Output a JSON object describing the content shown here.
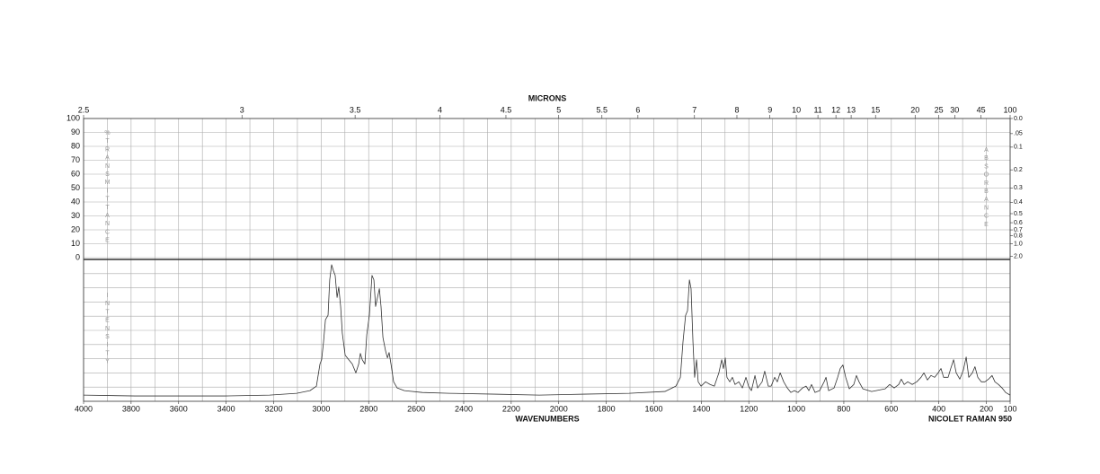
{
  "chart_data": {
    "type": "line",
    "x2label": "MICRONS",
    "xlabel": "WAVENUMBERS",
    "ylabel": "%TRANSMITTANCE",
    "y2label": "ABSORBANCE",
    "intensity_label": "INTENSITY",
    "instrument": "NICOLET RAMAN 950",
    "xlim": [
      4000,
      100
    ],
    "xticks": [
      4000,
      3800,
      3600,
      3400,
      3200,
      3000,
      2800,
      2600,
      2400,
      2200,
      2000,
      1800,
      1600,
      1400,
      1200,
      1000,
      800,
      600,
      400,
      200,
      100
    ],
    "xgrid": [
      4000,
      3900,
      3800,
      3700,
      3600,
      3500,
      3400,
      3300,
      3200,
      3100,
      3000,
      2900,
      2800,
      2700,
      2600,
      2500,
      2400,
      2300,
      2200,
      2100,
      2000,
      1900,
      1800,
      1700,
      1600,
      1500,
      1400,
      1300,
      1200,
      1100,
      1000,
      900,
      800,
      700,
      600,
      500,
      400,
      300,
      200,
      100
    ],
    "x2ticks": [
      2.5,
      3,
      3.5,
      4,
      4.5,
      5,
      5.5,
      6,
      7,
      8,
      9,
      10,
      11,
      12,
      13,
      15,
      20,
      25,
      30,
      45,
      100
    ],
    "ylim": [
      0,
      100
    ],
    "yticks": [
      0,
      10,
      20,
      30,
      40,
      50,
      60,
      70,
      80,
      90,
      100
    ],
    "y2ticks": [
      {
        "value": 0,
        "label": "0.0"
      },
      {
        "value": 0.05,
        "label": ".05"
      },
      0.1,
      0.2,
      0.3,
      0.4,
      0.5,
      0.6,
      0.7,
      0.8,
      {
        "value": 1,
        "label": "1.0"
      },
      {
        "value": 2,
        "label": "2.0"
      }
    ],
    "intensity_lim": [
      0,
      100
    ],
    "grid": true,
    "series": [
      {
        "color": "#333333",
        "x": [
          4000,
          3784,
          3406,
          3217,
          3103,
          3047,
          3020,
          3005,
          2998,
          2990,
          2982,
          2971,
          2964,
          2956,
          2948,
          2941,
          2933,
          2926,
          2918,
          2911,
          2899,
          2884,
          2869,
          2854,
          2842,
          2835,
          2827,
          2816,
          2808,
          2797,
          2786,
          2778,
          2771,
          2763,
          2755,
          2748,
          2740,
          2729,
          2721,
          2714,
          2706,
          2695,
          2680,
          2650,
          2574,
          2460,
          2271,
          2082,
          1893,
          1704,
          1553,
          1507,
          1488,
          1477,
          1466,
          1458,
          1450,
          1443,
          1435,
          1428,
          1420,
          1413,
          1401,
          1382,
          1363,
          1345,
          1326,
          1314,
          1307,
          1299,
          1292,
          1280,
          1269,
          1258,
          1242,
          1227,
          1212,
          1201,
          1189,
          1174,
          1163,
          1144,
          1133,
          1118,
          1106,
          1091,
          1080,
          1068,
          1053,
          1038,
          1023,
          1008,
          993,
          974,
          959,
          947,
          936,
          921,
          902,
          883,
          875,
          864,
          841,
          826,
          815,
          804,
          792,
          777,
          758,
          747,
          736,
          720,
          683,
          626,
          607,
          588,
          569,
          558,
          546,
          531,
          512,
          493,
          475,
          463,
          448,
          433,
          418,
          403,
          391,
          380,
          361,
          350,
          338,
          327,
          312,
          297,
          285,
          274,
          259,
          248,
          236,
          221,
          206,
          191,
          176,
          164,
          149,
          134,
          119,
          100
        ],
        "values": [
          4.4,
          3.8,
          3.8,
          4.4,
          5.7,
          7.6,
          10.8,
          26.6,
          29.7,
          42.4,
          58.2,
          61.4,
          86.7,
          97.5,
          93.0,
          89.9,
          74.1,
          81.6,
          67.7,
          48.7,
          32.9,
          29.7,
          26.6,
          20.3,
          26.6,
          34.2,
          29.7,
          26.6,
          47.5,
          61.4,
          89.9,
          86.7,
          67.7,
          74.1,
          80.4,
          67.7,
          45.6,
          36.1,
          31.0,
          34.8,
          26.6,
          13.9,
          9.5,
          7.6,
          6.3,
          5.7,
          5.1,
          4.4,
          5.1,
          5.7,
          7.0,
          10.8,
          17.1,
          42.4,
          61.4,
          64.6,
          86.7,
          80.4,
          42.4,
          17.1,
          29.7,
          13.9,
          10.8,
          13.9,
          12.0,
          10.8,
          20.3,
          29.7,
          23.4,
          31.0,
          17.1,
          13.9,
          17.1,
          12.0,
          13.9,
          9.5,
          17.1,
          10.8,
          7.6,
          18.4,
          9.5,
          13.9,
          21.5,
          10.8,
          10.8,
          17.1,
          13.9,
          20.3,
          13.9,
          9.5,
          6.3,
          7.6,
          6.3,
          9.5,
          10.8,
          7.6,
          12.0,
          6.3,
          7.6,
          13.9,
          17.1,
          7.6,
          9.5,
          17.1,
          23.4,
          25.9,
          17.1,
          8.9,
          12.0,
          18.4,
          13.9,
          8.9,
          7.0,
          8.9,
          12.0,
          9.5,
          12.0,
          15.8,
          12.0,
          13.9,
          12.0,
          13.9,
          17.1,
          20.3,
          15.2,
          18.4,
          17.1,
          20.3,
          23.4,
          17.1,
          17.1,
          23.4,
          29.7,
          20.3,
          15.8,
          22.2,
          31.6,
          17.1,
          20.3,
          24.7,
          17.1,
          13.9,
          13.9,
          15.8,
          18.4,
          13.9,
          12.0,
          9.5,
          6.3,
          4.4
        ]
      }
    ]
  }
}
